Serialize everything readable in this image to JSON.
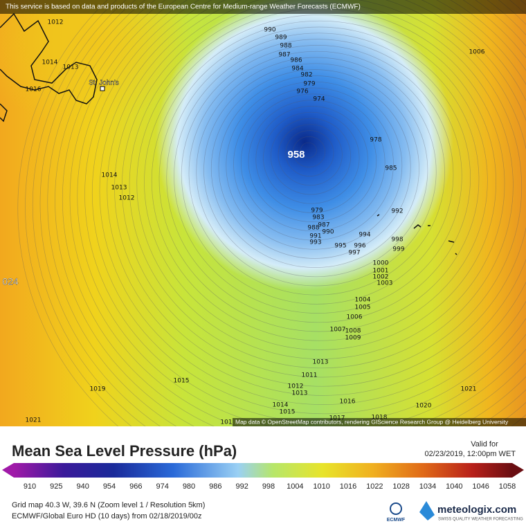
{
  "map": {
    "banner": "This service is based on data and products of the European Centre for Medium-range Weather Forecasts (ECMWF)",
    "place": "St. John's",
    "low_label": 958,
    "edge_label": "024",
    "attribution": "Map data © OpenStreetMap contributors, rendering GIScience Research Group @ Heidelberg University",
    "contour_labels": [
      990,
      989,
      988,
      987,
      986,
      984,
      982,
      979,
      976,
      974,
      978,
      985,
      992,
      994,
      998,
      999,
      995,
      996,
      997,
      990,
      988,
      987,
      991,
      993,
      983,
      979,
      1000,
      1001,
      1002,
      1003,
      1004,
      1005,
      1006,
      1007,
      1008,
      1009,
      1013,
      1011,
      1012,
      1013,
      1014,
      1015,
      1016,
      1017,
      1018,
      1015,
      1019,
      1021,
      1020,
      1021,
      1006,
      1014,
      1013,
      1012,
      1012,
      1014,
      1013,
      1016,
      101
    ]
  },
  "legend": {
    "title": "Mean Sea Level Pressure (hPa)",
    "valid_label": "Valid for",
    "valid_time": "02/23/2019, 12:00pm WET",
    "ticks": [
      910,
      925,
      940,
      954,
      966,
      974,
      980,
      986,
      992,
      998,
      1004,
      1010,
      1016,
      1022,
      1028,
      1034,
      1040,
      1046,
      1058
    ]
  },
  "footer": {
    "grid_info": "Grid map 40.3 W, 39.6 N (Zoom level 1 / Resolution 5km)",
    "model_info": "ECMWF/Global Euro HD (10 days) from 02/18/2019/00z",
    "ecmwf": "ECMWF",
    "brand": "meteologix.com",
    "tagline": "SWISS QUALITY WEATHER FORECASTING"
  }
}
